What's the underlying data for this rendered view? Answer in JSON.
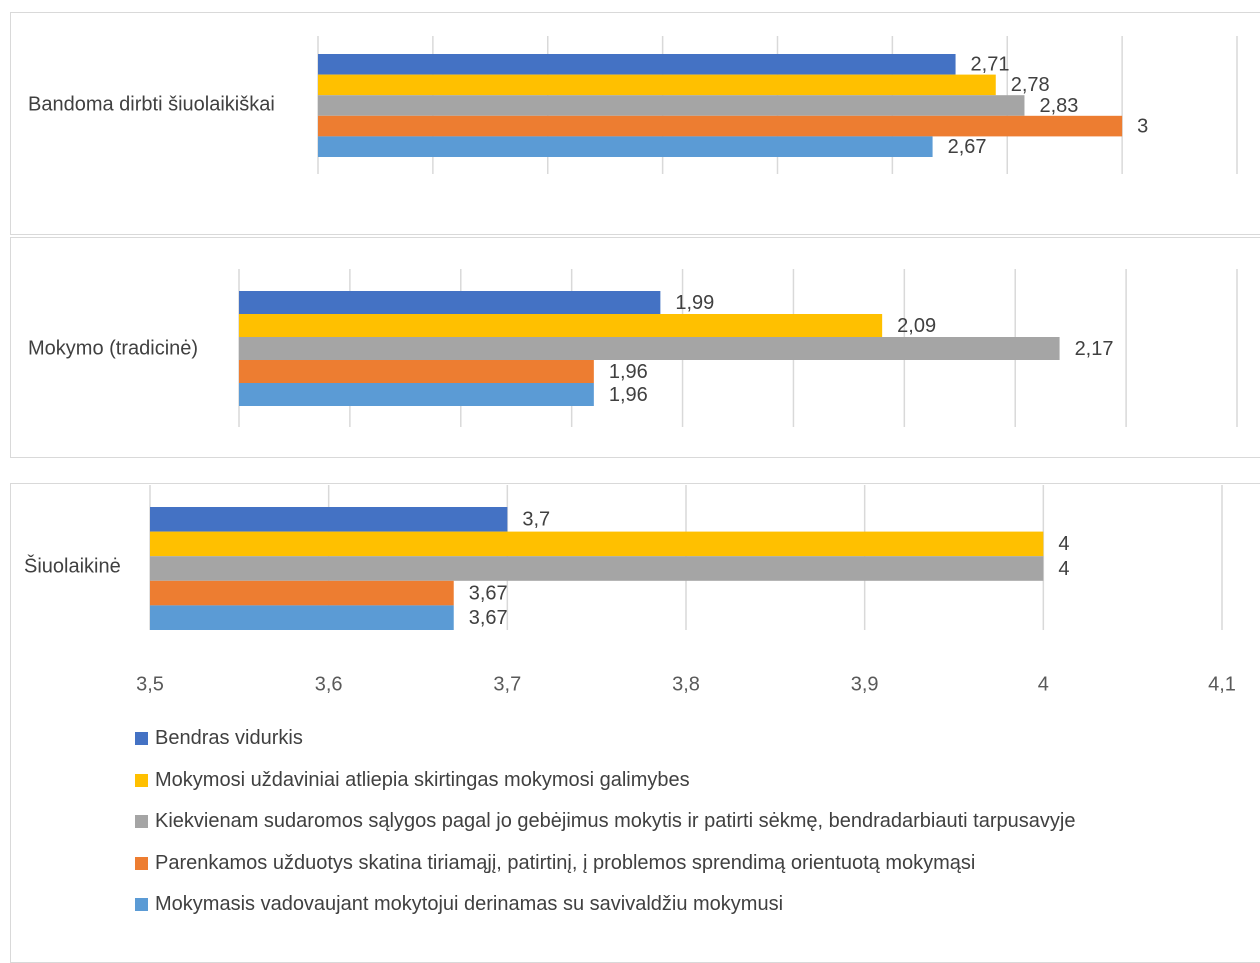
{
  "chart_data": [
    {
      "type": "bar",
      "orientation": "horizontal",
      "category": "Bandoma dirbti šiuolaikiškai",
      "xlim": [
        1.6,
        3.2
      ],
      "grid": true,
      "series": [
        {
          "name": "Bendras vidurkis",
          "value": 2.71,
          "label": "2,71"
        },
        {
          "name": "Mokymosi uždaviniai atliepia skirtingas mokymosi galimybes",
          "value": 2.78,
          "label": "2,78"
        },
        {
          "name": "Kiekvienam sudaromos sąlygos pagal jo gebėjimus mokytis ir patirti sėkmę, bendradarbiauti tarpusavyje",
          "value": 2.83,
          "label": "2,83"
        },
        {
          "name": "Parenkamos užduotys skatina tiriamąjį, patirtinį, į problemos sprendimą orientuotą mokymąsi",
          "value": 3.0,
          "label": "3"
        },
        {
          "name": "Mokymasis vadovaujant mokytojui derinamas su savivaldžiu mokymusi",
          "value": 2.67,
          "label": "2,67"
        }
      ]
    },
    {
      "type": "bar",
      "orientation": "horizontal",
      "category": "Mokymo (tradicinė)",
      "xlim": [
        1.8,
        2.25
      ],
      "grid": true,
      "series": [
        {
          "name": "Bendras vidurkis",
          "value": 1.99,
          "label": "1,99"
        },
        {
          "name": "Mokymosi uždaviniai atliepia skirtingas mokymosi galimybes",
          "value": 2.09,
          "label": "2,09"
        },
        {
          "name": "Kiekvienam sudaromos sąlygos pagal jo gebėjimus mokytis ir patirti sėkmę, bendradarbiauti tarpusavyje",
          "value": 2.17,
          "label": "2,17"
        },
        {
          "name": "Parenkamos užduotys skatina tiriamąjį, patirtinį, į problemos sprendimą orientuotą mokymąsi",
          "value": 1.96,
          "label": "1,96"
        },
        {
          "name": "Mokymasis vadovaujant mokytojui derinamas su savivaldžiu mokymusi",
          "value": 1.96,
          "label": "1,96"
        }
      ]
    },
    {
      "type": "bar",
      "orientation": "horizontal",
      "category": "Šiuolaikinė",
      "xlim": [
        3.5,
        4.1
      ],
      "xticks": [
        "3,5",
        "3,6",
        "3,7",
        "3,8",
        "3,9",
        "4",
        "4,1"
      ],
      "grid": true,
      "legend_position": "bottom",
      "series": [
        {
          "name": "Bendras vidurkis",
          "value": 3.7,
          "label": "3,7"
        },
        {
          "name": "Mokymosi uždaviniai atliepia skirtingas mokymosi galimybes",
          "value": 4.0,
          "label": "4"
        },
        {
          "name": "Kiekvienam sudaromos sąlygos pagal jo gebėjimus mokytis ir patirti sėkmę, bendradarbiauti tarpusavyje",
          "value": 4.0,
          "label": "4"
        },
        {
          "name": "Parenkamos užduotys skatina tiriamąjį, patirtinį, į problemos sprendimą orientuotą mokymąsi",
          "value": 3.67,
          "label": "3,67"
        },
        {
          "name": "Mokymasis vadovaujant mokytojui derinamas su savivaldžiu mokymusi",
          "value": 3.67,
          "label": "3,67"
        }
      ]
    }
  ],
  "legend": [
    {
      "label": "Bendras vidurkis",
      "color": "#4472c4"
    },
    {
      "label": "Mokymosi uždaviniai atliepia skirtingas mokymosi galimybes",
      "color": "#ffc000"
    },
    {
      "label": "Kiekvienam sudaromos sąlygos pagal jo gebėjimus mokytis ir patirti sėkmę, bendradarbiauti tarpusavyje",
      "color": "#a5a5a5"
    },
    {
      "label": "Parenkamos užduotys skatina tiriamąjį, patirtinį, į problemos sprendimą orientuotą mokymąsi",
      "color": "#ed7d31"
    },
    {
      "label": "Mokymasis vadovaujant mokytojui derinamas su savivaldžiu mokymusi",
      "color": "#5b9bd5"
    }
  ]
}
